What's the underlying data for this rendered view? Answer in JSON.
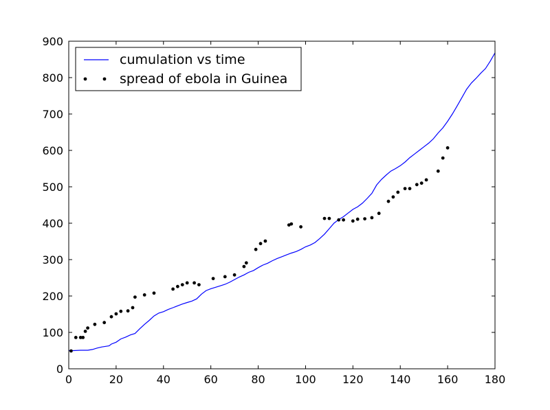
{
  "chart_data": {
    "type": "line",
    "title": "",
    "xlabel": "",
    "ylabel": "",
    "xlim": [
      0,
      180
    ],
    "ylim": [
      0,
      900
    ],
    "x_ticks": [
      0,
      20,
      40,
      60,
      80,
      100,
      120,
      140,
      160,
      180
    ],
    "y_ticks": [
      0,
      100,
      200,
      300,
      400,
      500,
      600,
      700,
      800,
      900
    ],
    "grid": false,
    "legend_position": "top-left",
    "series": [
      {
        "name": "cumulation vs time",
        "style": "line",
        "color": "#0000ff",
        "x": [
          0,
          2,
          5,
          8,
          10,
          12,
          14,
          17,
          18,
          20,
          22,
          24,
          26,
          28,
          30,
          32,
          34,
          36,
          38,
          40,
          42,
          44,
          46,
          48,
          50,
          52,
          54,
          56,
          58,
          60,
          62,
          64,
          66,
          68,
          70,
          72,
          74,
          76,
          78,
          80,
          82,
          84,
          86,
          88,
          90,
          92,
          94,
          96,
          98,
          100,
          102,
          104,
          106,
          108,
          110,
          112,
          114,
          116,
          118,
          120,
          122,
          124,
          126,
          128,
          130,
          132,
          134,
          136,
          138,
          140,
          142,
          144,
          146,
          148,
          150,
          152,
          154,
          156,
          158,
          160,
          162,
          164,
          166,
          168,
          170,
          172,
          174,
          176,
          178,
          180
        ],
        "y": [
          50,
          50,
          51,
          51,
          53,
          57,
          60,
          63,
          68,
          73,
          82,
          87,
          93,
          97,
          110,
          122,
          133,
          145,
          153,
          157,
          163,
          168,
          173,
          178,
          182,
          186,
          192,
          205,
          215,
          220,
          224,
          228,
          232,
          238,
          245,
          252,
          258,
          265,
          270,
          278,
          285,
          290,
          297,
          303,
          308,
          313,
          318,
          322,
          328,
          335,
          340,
          347,
          358,
          370,
          385,
          400,
          410,
          418,
          428,
          438,
          445,
          455,
          468,
          482,
          505,
          520,
          532,
          543,
          550,
          558,
          568,
          580,
          590,
          600,
          610,
          620,
          632,
          648,
          662,
          680,
          700,
          722,
          745,
          768,
          785,
          798,
          812,
          825,
          845,
          868
        ]
      },
      {
        "name": "spread of ebola in Guinea",
        "style": "points",
        "color": "#000000",
        "x": [
          1,
          3,
          5,
          6,
          7,
          8,
          11,
          15,
          18,
          20,
          22,
          25,
          27,
          28,
          32,
          36,
          44,
          46,
          48,
          50,
          53,
          55,
          61,
          66,
          70,
          74,
          75,
          79,
          81,
          83,
          93,
          94,
          98,
          108,
          110,
          114,
          116,
          120,
          122,
          125,
          128,
          131,
          135,
          137,
          139,
          142,
          144,
          147,
          149,
          151,
          156,
          158,
          160
        ],
        "y": [
          49,
          86,
          86,
          86,
          103,
          112,
          122,
          127,
          143,
          151,
          158,
          159,
          168,
          197,
          203,
          208,
          219,
          226,
          231,
          236,
          236,
          231,
          248,
          253,
          258,
          281,
          291,
          328,
          344,
          351,
          395,
          398,
          390,
          413,
          413,
          409,
          409,
          406,
          411,
          412,
          415,
          427,
          460,
          472,
          485,
          495,
          495,
          506,
          510,
          519,
          543,
          579,
          607
        ]
      }
    ]
  }
}
